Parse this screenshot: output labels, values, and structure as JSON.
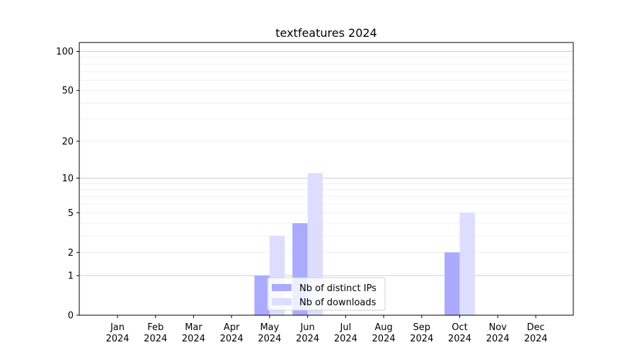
{
  "chart_data": {
    "type": "bar",
    "title": "textfeatures 2024",
    "xlabel": "",
    "ylabel": "",
    "yscale": "log(1+y)",
    "ylim": [
      0,
      117
    ],
    "grid": true,
    "legend_position": "lower-center",
    "categories": [
      "Jan\n2024",
      "Feb\n2024",
      "Mar\n2024",
      "Apr\n2024",
      "May\n2024",
      "Jun\n2024",
      "Jul\n2024",
      "Aug\n2024",
      "Sep\n2024",
      "Oct\n2024",
      "Nov\n2024",
      "Dec\n2024"
    ],
    "yticks": [
      0,
      1,
      2,
      5,
      10,
      20,
      50,
      100
    ],
    "series": [
      {
        "name": "Nb of distinct IPs",
        "color": "#aaaaff",
        "values": [
          0,
          0,
          0,
          0,
          1,
          4,
          0,
          0,
          0,
          2,
          0,
          0
        ]
      },
      {
        "name": "Nb of downloads",
        "color": "#ddddff",
        "values": [
          0,
          0,
          0,
          0,
          3,
          11,
          0,
          0,
          0,
          5,
          0,
          0
        ]
      }
    ]
  }
}
